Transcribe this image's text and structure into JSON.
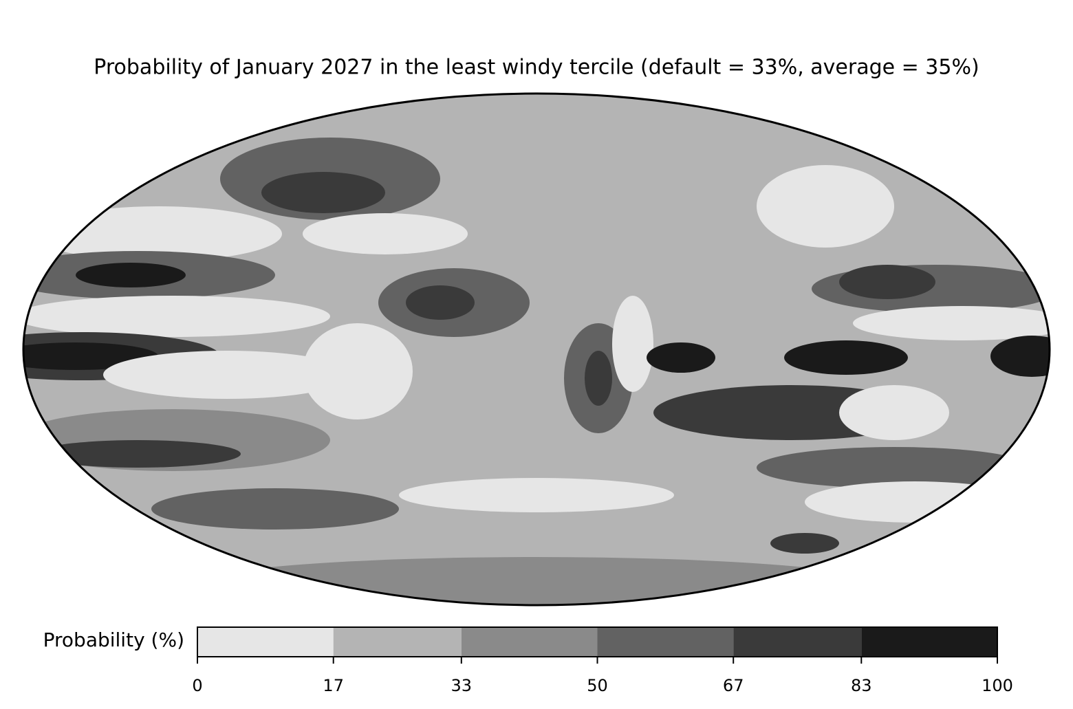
{
  "title": "Probability of January 2027 in the least windy tercile (default = 33%, average = 35%)",
  "colorbar": {
    "label": "Probability (%)",
    "ticks": [
      0,
      17,
      33,
      50,
      67,
      83,
      100
    ],
    "colors": [
      "#e6e6e6",
      "#b4b4b4",
      "#8a8a8a",
      "#626262",
      "#3a3a3a",
      "#1a1a1a"
    ]
  }
}
